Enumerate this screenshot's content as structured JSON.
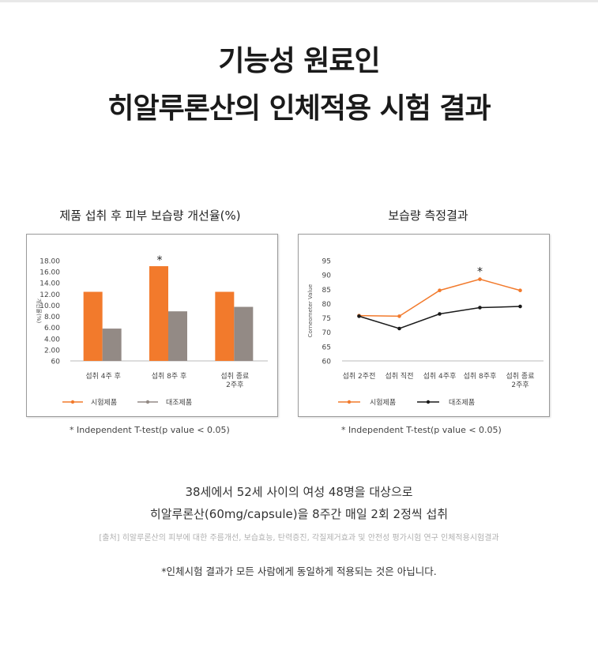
{
  "header": {
    "title_line1": "기능성 원료인",
    "title_line2": "히알루론산의 인체적용 시험 결과"
  },
  "chart_data": [
    {
      "type": "bar",
      "title": "제품 섭취 후 피부 보습량 개선율(%)",
      "ylabel": "개선율(%)",
      "yticks": [
        "18.00",
        "16.00",
        "14.00",
        "12.00",
        "10.00",
        "8.00",
        "6.00",
        "4.00",
        "2.00",
        "60"
      ],
      "ylim": [
        0,
        18
      ],
      "categories": [
        "섭취 4주 후",
        "섭취 8주 후",
        [
          "섭취 종료",
          "2주후"
        ]
      ],
      "series": [
        {
          "name": "시험제품",
          "color": "#f27a2c",
          "values": [
            12.4,
            17.0,
            12.4
          ]
        },
        {
          "name": "대조제품",
          "color": "#938a85",
          "values": [
            5.8,
            8.9,
            9.7
          ]
        }
      ],
      "annotation": "*",
      "annotation_index": 1,
      "legend_position": "bottom",
      "footnote": "* Independent T-test(p value < 0.05)"
    },
    {
      "type": "line",
      "title": "보습량 측정결과",
      "ylabel": "Corneometer Value",
      "ylim": [
        60,
        95
      ],
      "yticks": [
        95,
        90,
        85,
        80,
        75,
        70,
        65,
        60
      ],
      "categories": [
        "섭취 2주전",
        "섭취 직전",
        "섭취 4주후",
        "섭취 8주후",
        [
          "섭취 종료",
          "2주후"
        ]
      ],
      "series": [
        {
          "name": "시험제품",
          "color": "#f27a2c",
          "values": [
            75.8,
            75.6,
            84.6,
            88.5,
            84.6
          ]
        },
        {
          "name": "대조제품",
          "color": "#1a1a1a",
          "values": [
            75.6,
            71.3,
            76.4,
            78.6,
            79.0
          ]
        }
      ],
      "annotation": "*",
      "annotation_index": 3,
      "legend_position": "bottom",
      "footnote": "* Independent T-test(p value < 0.05)"
    }
  ],
  "summary": {
    "line1": "38세에서 52세 사이의 여성 48명을 대상으로",
    "line2": "히알루론산(60mg/capsule)을 8주간 매일 2회 2정씩 섭취",
    "source": "[출처] 히알루론산의 피부에 대한 주름개선, 보습효능, 탄력증진, 각질제거효과 및 안전성 평가시험 연구 인체적용시험결과",
    "disclaimer": "*인체시험 결과가 모든 사람에게 동일하게 적용되는 것은 아닙니다."
  }
}
